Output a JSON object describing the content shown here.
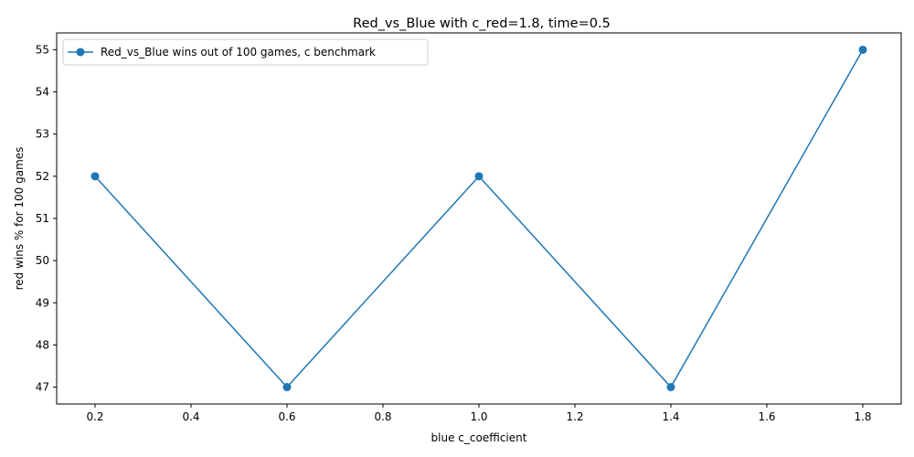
{
  "chart_data": {
    "type": "line",
    "title": "Red_vs_Blue with c_red=1.8, time=0.5",
    "xlabel": "blue c_coefficient",
    "ylabel": "red wins % for 100 games",
    "x_ticks": [
      0.2,
      0.4,
      0.6,
      0.8,
      1.0,
      1.2,
      1.4,
      1.6,
      1.8
    ],
    "y_ticks": [
      47,
      48,
      49,
      50,
      51,
      52,
      53,
      54,
      55
    ],
    "xlim": [
      0.12,
      1.88
    ],
    "ylim": [
      46.6,
      55.4
    ],
    "grid": false,
    "legend_position": "top-left",
    "series": [
      {
        "name": "Red_vs_Blue wins out of 100 games, c benchmark",
        "color": "#1f77b4",
        "marker": "circle",
        "x": [
          0.2,
          0.6,
          1.0,
          1.4,
          1.8
        ],
        "y": [
          52,
          47,
          52,
          47,
          55
        ]
      }
    ]
  }
}
